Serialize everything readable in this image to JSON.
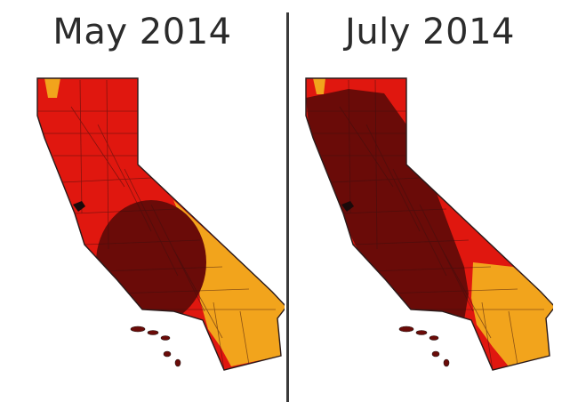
{
  "panels": [
    {
      "title": "May 2014",
      "region": "California",
      "category_colors": {
        "severe": "#f2a41c",
        "extreme": "#e0170f",
        "exceptional": "#6a0b08"
      }
    },
    {
      "title": "July 2014",
      "region": "California",
      "category_colors": {
        "severe": "#f2a41c",
        "extreme": "#e0170f",
        "exceptional": "#6a0b08"
      }
    }
  ],
  "colors": {
    "background": "#ffffff",
    "divider": "#3a3a3a",
    "title_text": "#2b2b2b",
    "county_lines": "#3a1010",
    "outline": "#2a1a1a"
  }
}
